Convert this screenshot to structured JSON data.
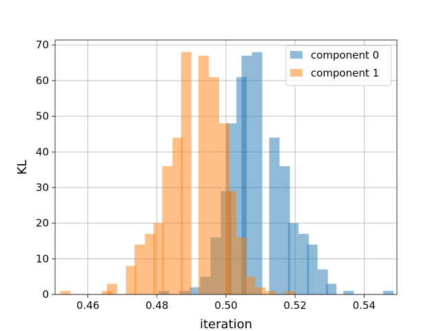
{
  "chart_data": {
    "type": "histogram",
    "title": "",
    "xlabel": "iteration",
    "ylabel": "KL",
    "xlim": [
      0.4505,
      0.5495
    ],
    "ylim": [
      0,
      71.4
    ],
    "bin_width": 0.003,
    "grid": true,
    "legend_position": "top-right",
    "xticks": [
      {
        "value": 0.46,
        "label": "0.46"
      },
      {
        "value": 0.48,
        "label": "0.48"
      },
      {
        "value": 0.5,
        "label": "0.50"
      },
      {
        "value": 0.52,
        "label": "0.52"
      },
      {
        "value": 0.54,
        "label": "0.54"
      }
    ],
    "yticks": [
      {
        "value": 0,
        "label": "0"
      },
      {
        "value": 10,
        "label": "10"
      },
      {
        "value": 20,
        "label": "20"
      },
      {
        "value": 30,
        "label": "30"
      },
      {
        "value": 40,
        "label": "40"
      },
      {
        "value": 50,
        "label": "50"
      },
      {
        "value": 60,
        "label": "60"
      },
      {
        "value": 70,
        "label": "70"
      }
    ],
    "series": [
      {
        "name": "component 0",
        "color": "#1f77b4",
        "opacity": 0.5,
        "bins": [
          {
            "x0": 0.4805,
            "count": 1
          },
          {
            "x0": 0.4865,
            "count": 1
          },
          {
            "x0": 0.4895,
            "count": 2
          },
          {
            "x0": 0.4925,
            "count": 5
          },
          {
            "x0": 0.4955,
            "count": 16
          },
          {
            "x0": 0.4985,
            "count": 29
          },
          {
            "x0": 0.5,
            "count": 48
          },
          {
            "x0": 0.503,
            "count": 61
          },
          {
            "x0": 0.5045,
            "count": 67
          },
          {
            "x0": 0.5075,
            "count": 68
          },
          {
            "x0": 0.5125,
            "count": 44
          },
          {
            "x0": 0.5155,
            "count": 36
          },
          {
            "x0": 0.518,
            "count": 20
          },
          {
            "x0": 0.521,
            "count": 17
          },
          {
            "x0": 0.5235,
            "count": 14
          },
          {
            "x0": 0.5265,
            "count": 7
          },
          {
            "x0": 0.529,
            "count": 3
          },
          {
            "x0": 0.534,
            "count": 1
          },
          {
            "x0": 0.5455,
            "count": 1
          }
        ]
      },
      {
        "name": "component 1",
        "color": "#ff7f0e",
        "opacity": 0.5,
        "bins": [
          {
            "x0": 0.452,
            "count": 1
          },
          {
            "x0": 0.464,
            "count": 1
          },
          {
            "x0": 0.4655,
            "count": 3
          },
          {
            "x0": 0.471,
            "count": 8
          },
          {
            "x0": 0.4735,
            "count": 14
          },
          {
            "x0": 0.4765,
            "count": 17
          },
          {
            "x0": 0.479,
            "count": 20
          },
          {
            "x0": 0.4815,
            "count": 36
          },
          {
            "x0": 0.4845,
            "count": 44
          },
          {
            "x0": 0.487,
            "count": 68
          },
          {
            "x0": 0.492,
            "count": 67
          },
          {
            "x0": 0.495,
            "count": 61
          },
          {
            "x0": 0.498,
            "count": 48
          },
          {
            "x0": 0.5,
            "count": 29
          },
          {
            "x0": 0.503,
            "count": 16
          },
          {
            "x0": 0.5055,
            "count": 5
          },
          {
            "x0": 0.5085,
            "count": 2
          },
          {
            "x0": 0.5115,
            "count": 1
          },
          {
            "x0": 0.517,
            "count": 1
          }
        ]
      }
    ]
  }
}
